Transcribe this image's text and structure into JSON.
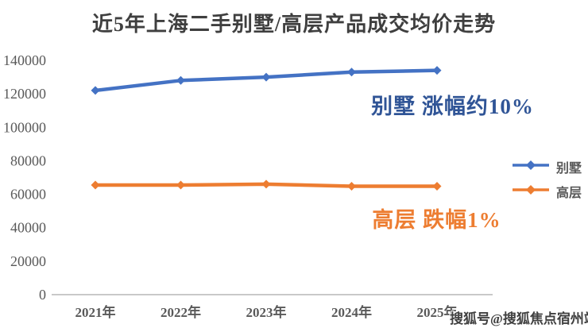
{
  "chart": {
    "title": "近5年上海二手别墅/高层产品成交均价走势"
  },
  "chart_data": {
    "type": "line",
    "title": "近5年上海二手别墅/高层产品成交均价走势",
    "categories": [
      "2021年",
      "2022年",
      "2023年",
      "2024年",
      "2025年"
    ],
    "series": [
      {
        "name": "别墅",
        "color": "#4472C4",
        "values": [
          122000,
          128000,
          130000,
          133000,
          134000
        ]
      },
      {
        "name": "高层",
        "color": "#ED7D31",
        "values": [
          65500,
          65500,
          66000,
          64800,
          64800
        ]
      }
    ],
    "ylim": [
      0,
      140000
    ],
    "ytick_step": 20000,
    "yticks": [
      "0",
      "20000",
      "40000",
      "60000",
      "80000",
      "100000",
      "120000",
      "140000"
    ],
    "grid": false,
    "legend_position": "right",
    "marker": "diamond"
  },
  "annotations": {
    "villa": {
      "text": "别墅 涨幅约10%",
      "color": "#2F5496"
    },
    "highrise": {
      "text": "高层 跌幅1%",
      "color": "#ED7D31"
    }
  },
  "legend": {
    "items": [
      {
        "label": "别墅",
        "color": "#4472C4"
      },
      {
        "label": "高层",
        "color": "#ED7D31"
      }
    ]
  },
  "watermark": {
    "text": "搜狐号@搜狐焦点宿州站"
  },
  "style": {
    "axis_line_color": "#C9C9C9",
    "tick_label_color": "#595959"
  }
}
